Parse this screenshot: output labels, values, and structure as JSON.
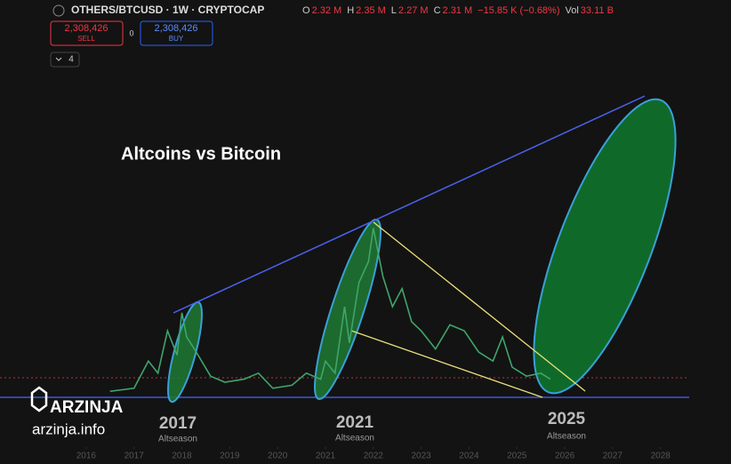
{
  "header": {
    "symbol": "OTHERS/BTCUSD · 1W · CRYPTOCAP",
    "ohlc": [
      {
        "label": "O",
        "value": "2.32 M"
      },
      {
        "label": "H",
        "value": "2.35 M"
      },
      {
        "label": "L",
        "value": "2.27 M"
      },
      {
        "label": "C",
        "value": "2.31 M"
      }
    ],
    "change": "−15.85 K (−0.68%)",
    "volume_label": "Vol",
    "volume": "33.11 B",
    "sell_price": "2,308,426",
    "sell_label": "SELL",
    "spread": "0",
    "buy_price": "2,308,426",
    "buy_label": "BUY",
    "indicators": "4"
  },
  "watermark": {
    "brand": "ARZINJA",
    "site": "arzinja.info"
  },
  "chart_data": {
    "type": "line",
    "title": "Altcoins vs Bitcoin",
    "annotations": [
      {
        "year": "2017",
        "label": "Altseason"
      },
      {
        "year": "2021",
        "label": "Altseason"
      },
      {
        "year": "2025",
        "label": "Altseason"
      }
    ],
    "series": [
      {
        "color": "#3fa56b",
        "x": [
          2016.5,
          2017.0,
          2017.3,
          2017.5,
          2017.7,
          2017.9,
          2018.0,
          2018.1,
          2018.3,
          2018.6,
          2018.9,
          2019.3,
          2019.6,
          2019.9,
          2020.3,
          2020.6,
          2020.9,
          2021.0,
          2021.2,
          2021.4,
          2021.5,
          2021.7,
          2021.9,
          2022.0,
          2022.2,
          2022.4,
          2022.6,
          2022.8,
          2023.0,
          2023.3,
          2023.6,
          2023.9,
          2024.2,
          2024.5,
          2024.7,
          2024.9,
          2025.2,
          2025.5,
          2025.7
        ],
        "values": [
          2,
          3,
          12,
          8,
          22,
          14,
          28,
          20,
          15,
          7,
          5,
          6,
          8,
          3,
          4,
          8,
          6,
          12,
          8,
          30,
          18,
          38,
          45,
          56,
          40,
          30,
          36,
          25,
          22,
          16,
          24,
          22,
          15,
          12,
          20,
          10,
          7,
          8,
          6
        ]
      }
    ],
    "xlim": [
      2014.2,
      2028.6
    ],
    "xticks": [
      2016,
      2017,
      2018,
      2019,
      2020,
      2021,
      2022,
      2023,
      2024,
      2025,
      2026,
      2027,
      2028
    ],
    "ylim": [
      0,
      100
    ]
  }
}
